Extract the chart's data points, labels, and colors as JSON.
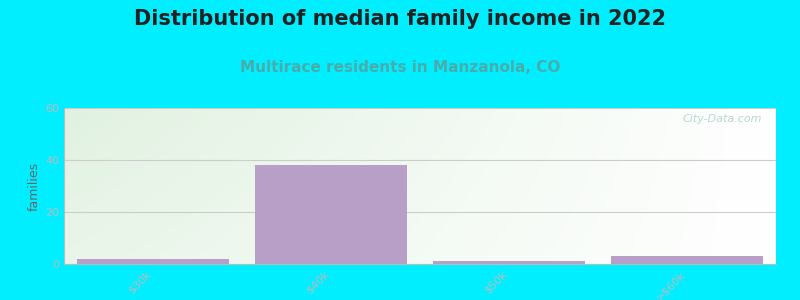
{
  "title": "Distribution of median family income in 2022",
  "subtitle": "Multirace residents in Manzanola, CO",
  "categories": [
    "$30k",
    "$40k",
    "$50k",
    ">$60k"
  ],
  "values": [
    2,
    38,
    1,
    3
  ],
  "bar_color": "#b89fc8",
  "ylim": [
    0,
    60
  ],
  "yticks": [
    0,
    20,
    40,
    60
  ],
  "ylabel": "families",
  "background_color": "#00eeff",
  "plot_bg_left": "#cde8cc",
  "plot_bg_right": "#f0f8f0",
  "plot_bg_white": "#ffffff",
  "title_fontsize": 15,
  "subtitle_fontsize": 11,
  "subtitle_color": "#4aacaa",
  "watermark": "City-Data.com"
}
